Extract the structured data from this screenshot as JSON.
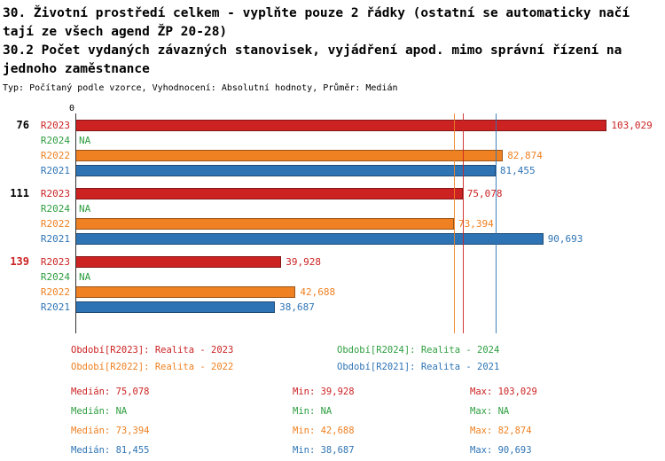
{
  "header": {
    "title_line1": "30. Životní prostředí celkem - vyplňte pouze 2 řádky (ostatní se automaticky načí",
    "title_line2": "tají ze všech agend ŽP 20-28)",
    "title_line3": "30.2 Počet vydaných závazných stanovisek, vyjádření apod. mimo správní řízení na",
    "title_line4": "jednoho zaměstnance",
    "meta": "Typ: Počítaný podle vzorce, Vyhodnocení: Absolutní hodnoty, Průměr: Medián"
  },
  "colors": {
    "r2023": "#cc2222",
    "r2024": "#2e9e40",
    "r2022": "#ef8122",
    "r2021": "#2e74b5",
    "axis": "#333333",
    "group_label_default": "#000000",
    "group_label_alert": "#cc2222"
  },
  "chart_data": {
    "type": "bar",
    "orientation": "horizontal",
    "xmax": 110000,
    "x_tick_zero": "0",
    "series_legend_order": [
      "R2023",
      "R2024",
      "R2022",
      "R2021"
    ],
    "groups": [
      {
        "label": "76",
        "label_color_key": "group_label_default",
        "bars": [
          {
            "series": "R2023",
            "value": 103029,
            "display": "103,029",
            "color_key": "r2023"
          },
          {
            "series": "R2024",
            "value": null,
            "display": "NA",
            "color_key": "r2024"
          },
          {
            "series": "R2022",
            "value": 82874,
            "display": "82,874",
            "color_key": "r2022"
          },
          {
            "series": "R2021",
            "value": 81455,
            "display": "81,455",
            "color_key": "r2021"
          }
        ]
      },
      {
        "label": "111",
        "label_color_key": "group_label_default",
        "bars": [
          {
            "series": "R2023",
            "value": 75078,
            "display": "75,078",
            "color_key": "r2023"
          },
          {
            "series": "R2024",
            "value": null,
            "display": "NA",
            "color_key": "r2024"
          },
          {
            "series": "R2022",
            "value": 73394,
            "display": "73,394",
            "color_key": "r2022"
          },
          {
            "series": "R2021",
            "value": 90693,
            "display": "90,693",
            "color_key": "r2021"
          }
        ]
      },
      {
        "label": "139",
        "label_color_key": "group_label_alert",
        "bars": [
          {
            "series": "R2023",
            "value": 39928,
            "display": "39,928",
            "color_key": "r2023"
          },
          {
            "series": "R2024",
            "value": null,
            "display": "NA",
            "color_key": "r2024"
          },
          {
            "series": "R2022",
            "value": 42688,
            "display": "42,688",
            "color_key": "r2022"
          },
          {
            "series": "R2021",
            "value": 38687,
            "display": "38,687",
            "color_key": "r2021"
          }
        ]
      }
    ],
    "median_lines": [
      {
        "value": 73394,
        "color_key": "r2022"
      },
      {
        "value": 75078,
        "color_key": "r2023"
      },
      {
        "value": 81455,
        "color_key": "r2021"
      }
    ]
  },
  "legend": [
    {
      "label": "Období[R2023]: Realita - 2023",
      "color_key": "r2023"
    },
    {
      "label": "Období[R2024]: Realita - 2024",
      "color_key": "r2024"
    },
    {
      "label": "Období[R2022]: Realita - 2022",
      "color_key": "r2022"
    },
    {
      "label": "Období[R2021]: Realita - 2021",
      "color_key": "r2021"
    }
  ],
  "stats_rows": [
    {
      "color_key": "r2023",
      "median": "Medián: 75,078",
      "min": "Min: 39,928",
      "max": "Max: 103,029"
    },
    {
      "color_key": "r2024",
      "median": "Medián: NA",
      "min": "Min: NA",
      "max": "Max: NA"
    },
    {
      "color_key": "r2022",
      "median": "Medián: 73,394",
      "min": "Min: 42,688",
      "max": "Max: 82,874"
    },
    {
      "color_key": "r2021",
      "median": "Medián: 81,455",
      "min": "Min: 38,687",
      "max": "Max: 90,693"
    }
  ]
}
